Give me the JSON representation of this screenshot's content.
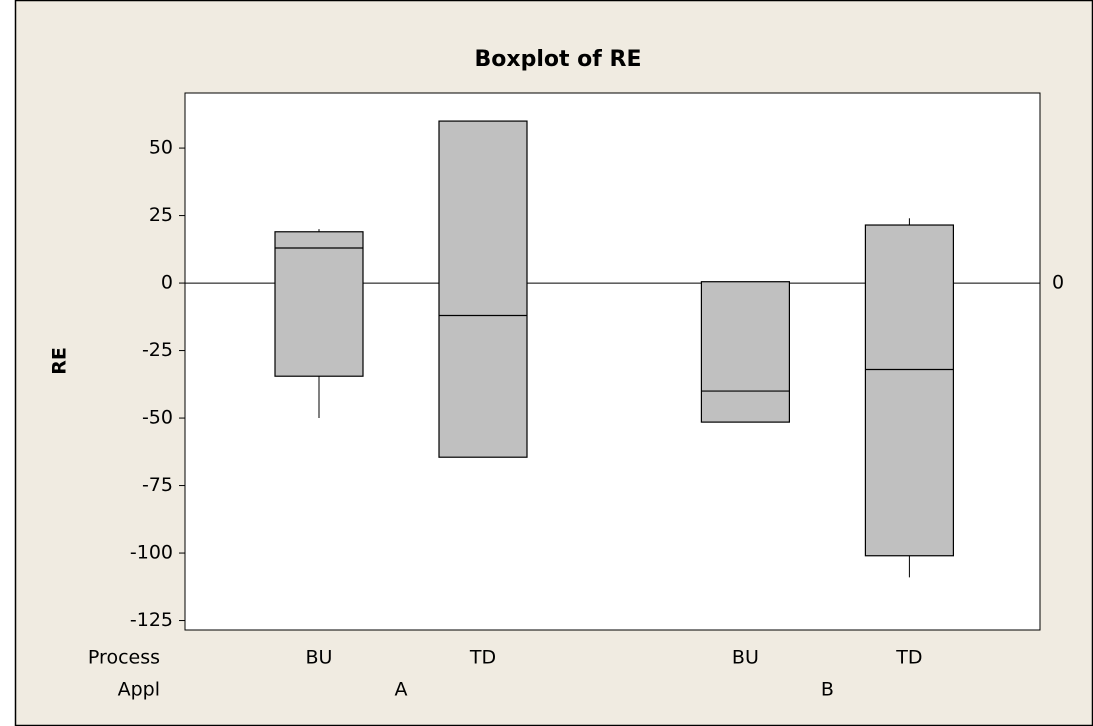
{
  "chart_data": {
    "type": "boxplot",
    "title": "Boxplot of RE",
    "y_label": "RE",
    "x_levels": [
      "Process",
      "Appl"
    ],
    "categories": [
      "BU",
      "TD",
      "BU",
      "TD"
    ],
    "groups": [
      "A",
      "B"
    ],
    "boxes": [
      {
        "min": -50,
        "q1": -34.5,
        "median": 13,
        "q3": 19,
        "max": 20
      },
      {
        "min": -64.5,
        "q1": -64.5,
        "median": -12,
        "q3": 60,
        "max": 60
      },
      {
        "min": -51.5,
        "q1": -51.5,
        "median": -40,
        "q3": 0.5,
        "max": 0.5
      },
      {
        "min": -109,
        "q1": -101,
        "median": -32,
        "q3": 21.5,
        "max": 24
      }
    ],
    "color": "#c0c0c0",
    "reference_line": 0,
    "ylim": [
      -128.5,
      70.4
    ],
    "yticks": [
      -125,
      -100,
      -75,
      -50,
      -25,
      0,
      25,
      50
    ],
    "grid": false
  }
}
